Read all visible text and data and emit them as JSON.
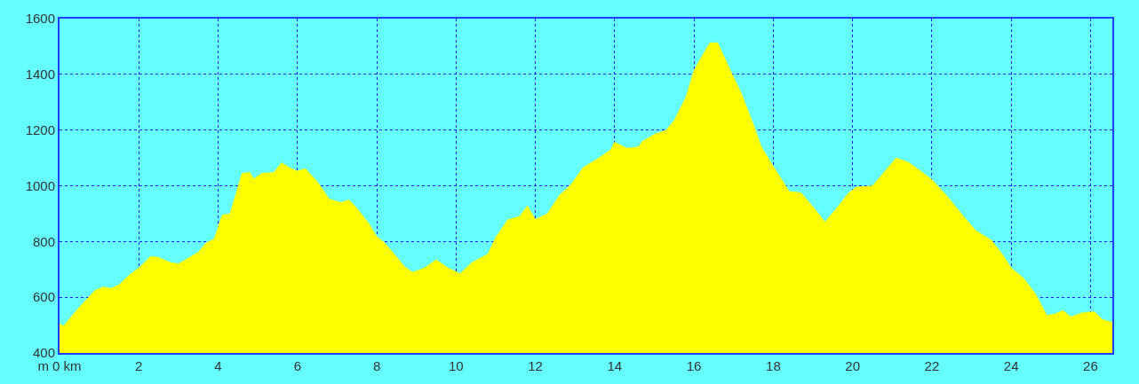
{
  "chart_data": {
    "type": "area",
    "x": [
      0,
      0.1,
      0.5,
      0.9,
      1.1,
      1.3,
      1.5,
      1.8,
      2.0,
      2.3,
      2.5,
      2.8,
      3.0,
      3.2,
      3.5,
      3.7,
      3.9,
      4.1,
      4.3,
      4.6,
      4.8,
      4.9,
      5.1,
      5.4,
      5.6,
      5.8,
      6.0,
      6.2,
      6.5,
      6.8,
      7.1,
      7.3,
      7.5,
      7.8,
      8.0,
      8.2,
      8.5,
      8.7,
      8.9,
      9.2,
      9.5,
      9.8,
      10.1,
      10.4,
      10.8,
      11.0,
      11.3,
      11.6,
      11.8,
      12.0,
      12.3,
      12.6,
      12.9,
      13.2,
      13.6,
      13.9,
      14.0,
      14.3,
      14.6,
      14.7,
      15.0,
      15.3,
      15.5,
      15.8,
      16.0,
      16.2,
      16.4,
      16.6,
      16.9,
      17.2,
      17.5,
      17.7,
      18.0,
      18.4,
      18.7,
      19.0,
      19.3,
      19.6,
      19.9,
      20.1,
      20.5,
      20.8,
      21.1,
      21.4,
      21.7,
      22.0,
      22.4,
      22.8,
      23.1,
      23.5,
      23.8,
      24.0,
      24.3,
      24.6,
      24.9,
      25.1,
      25.3,
      25.5,
      25.8,
      26.1,
      26.3,
      26.55
    ],
    "series": [
      {
        "color": "#ffff00",
        "values": [
          505,
          497,
          565,
          625,
          637,
          632,
          645,
          685,
          705,
          747,
          743,
          725,
          720,
          737,
          762,
          795,
          810,
          895,
          900,
          1045,
          1048,
          1025,
          1045,
          1048,
          1083,
          1065,
          1053,
          1062,
          1015,
          953,
          940,
          950,
          920,
          865,
          818,
          795,
          745,
          710,
          690,
          705,
          735,
          705,
          685,
          725,
          755,
          815,
          878,
          890,
          928,
          880,
          900,
          965,
          1005,
          1065,
          1100,
          1130,
          1157,
          1135,
          1140,
          1160,
          1185,
          1200,
          1235,
          1320,
          1415,
          1465,
          1513,
          1513,
          1420,
          1330,
          1220,
          1140,
          1070,
          980,
          975,
          925,
          870,
          920,
          975,
          995,
          1000,
          1050,
          1100,
          1085,
          1055,
          1022,
          960,
          890,
          840,
          805,
          750,
          705,
          670,
          615,
          535,
          540,
          553,
          530,
          545,
          548,
          520,
          510
        ]
      }
    ],
    "xlim": [
      0,
      26.55
    ],
    "xticks": [
      {
        "value": 0,
        "label": "m 0 km"
      },
      2,
      4,
      6,
      8,
      10,
      12,
      14,
      16,
      18,
      20,
      22,
      24,
      26
    ],
    "ylim": [
      400,
      1600
    ],
    "yticks": [
      400,
      600,
      800,
      1000,
      1200,
      1400,
      1600
    ],
    "grid": true,
    "line_style": "dotted"
  }
}
